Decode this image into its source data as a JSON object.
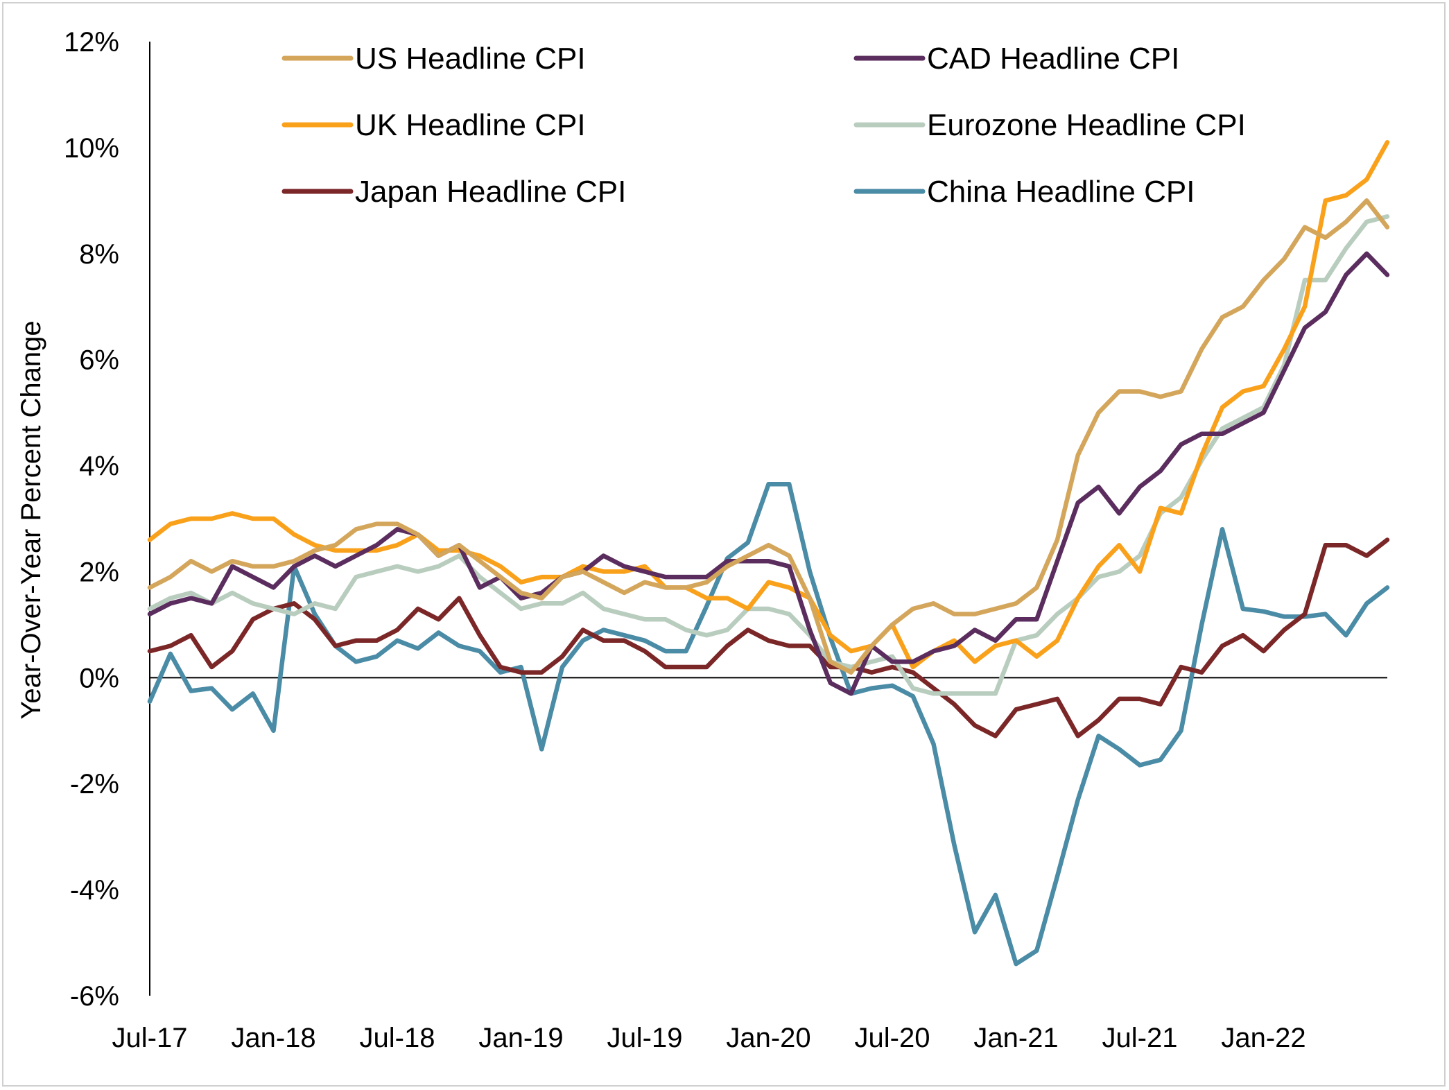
{
  "chart_data": {
    "type": "line",
    "title": "",
    "xlabel": "",
    "ylabel": "Year-Over-Year Percent Change",
    "ylim": [
      -6,
      12
    ],
    "ytick_step": 2,
    "ytick_labels": [
      "-6%",
      "-4%",
      "-2%",
      "0%",
      "2%",
      "4%",
      "6%",
      "8%",
      "10%",
      "12%"
    ],
    "x_start": "Jul-17",
    "x_end": "Jul-22",
    "x_frequency": "monthly",
    "xtick_labels": [
      "Jul-17",
      "Jan-18",
      "Jul-18",
      "Jan-19",
      "Jul-19",
      "Jan-20",
      "Jul-20",
      "Jan-21",
      "Jul-21",
      "Jan-22"
    ],
    "grid": false,
    "legend_placement": "top",
    "series": [
      {
        "name": "US Headline CPI",
        "color": "#D4A65C",
        "values": [
          1.7,
          1.9,
          2.2,
          2.0,
          2.2,
          2.1,
          2.1,
          2.2,
          2.4,
          2.5,
          2.8,
          2.9,
          2.9,
          2.7,
          2.3,
          2.5,
          2.2,
          1.9,
          1.6,
          1.5,
          1.9,
          2.0,
          1.8,
          1.6,
          1.8,
          1.7,
          1.7,
          1.8,
          2.1,
          2.3,
          2.5,
          2.3,
          1.5,
          0.3,
          0.1,
          0.6,
          1.0,
          1.3,
          1.4,
          1.2,
          1.2,
          1.3,
          1.4,
          1.7,
          2.6,
          4.2,
          5.0,
          5.4,
          5.4,
          5.3,
          5.4,
          6.2,
          6.8,
          7.0,
          7.5,
          7.9,
          8.5,
          8.3,
          8.6,
          9.0,
          8.5
        ]
      },
      {
        "name": "CAD Headline CPI",
        "color": "#5A2D5E",
        "values": [
          1.2,
          1.4,
          1.5,
          1.4,
          2.1,
          1.9,
          1.7,
          2.1,
          2.3,
          2.1,
          2.3,
          2.5,
          2.8,
          2.7,
          2.3,
          2.5,
          1.7,
          1.9,
          1.5,
          1.6,
          1.9,
          2.0,
          2.3,
          2.1,
          2.0,
          1.9,
          1.9,
          1.9,
          2.2,
          2.2,
          2.2,
          2.1,
          0.9,
          -0.1,
          -0.3,
          0.6,
          0.3,
          0.3,
          0.5,
          0.6,
          0.9,
          0.7,
          1.1,
          1.1,
          2.2,
          3.3,
          3.6,
          3.1,
          3.6,
          3.9,
          4.4,
          4.6,
          4.6,
          4.8,
          5.0,
          5.8,
          6.6,
          6.9,
          7.6,
          8.0,
          7.6
        ]
      },
      {
        "name": "UK Headline CPI",
        "color": "#F9A11B",
        "values": [
          2.6,
          2.9,
          3.0,
          3.0,
          3.1,
          3.0,
          3.0,
          2.7,
          2.5,
          2.4,
          2.4,
          2.4,
          2.5,
          2.7,
          2.4,
          2.4,
          2.3,
          2.1,
          1.8,
          1.9,
          1.9,
          2.1,
          2.0,
          2.0,
          2.1,
          1.7,
          1.7,
          1.5,
          1.5,
          1.3,
          1.8,
          1.7,
          1.5,
          0.8,
          0.5,
          0.6,
          1.0,
          0.2,
          0.5,
          0.7,
          0.3,
          0.6,
          0.7,
          0.4,
          0.7,
          1.5,
          2.1,
          2.5,
          2.0,
          3.2,
          3.1,
          4.2,
          5.1,
          5.4,
          5.5,
          6.2,
          7.0,
          9.0,
          9.1,
          9.4,
          10.1
        ]
      },
      {
        "name": "Eurozone Headline CPI",
        "color": "#B9CDBF",
        "values": [
          1.3,
          1.5,
          1.6,
          1.4,
          1.6,
          1.4,
          1.3,
          1.2,
          1.4,
          1.3,
          1.9,
          2.0,
          2.1,
          2.0,
          2.1,
          2.3,
          1.9,
          1.6,
          1.3,
          1.4,
          1.4,
          1.6,
          1.3,
          1.2,
          1.1,
          1.1,
          0.9,
          0.8,
          0.9,
          1.3,
          1.3,
          1.2,
          0.8,
          0.3,
          0.2,
          0.3,
          0.4,
          -0.2,
          -0.3,
          -0.3,
          -0.3,
          -0.3,
          0.7,
          0.8,
          1.2,
          1.5,
          1.9,
          2.0,
          2.3,
          3.1,
          3.4,
          4.1,
          4.7,
          4.9,
          5.1,
          5.9,
          7.5,
          7.5,
          8.1,
          8.6,
          8.7
        ]
      },
      {
        "name": "Japan Headline CPI",
        "color": "#7B2627",
        "values": [
          0.5,
          0.6,
          0.8,
          0.2,
          0.5,
          1.1,
          1.3,
          1.4,
          1.1,
          0.6,
          0.7,
          0.7,
          0.9,
          1.3,
          1.1,
          1.5,
          0.8,
          0.2,
          0.1,
          0.1,
          0.4,
          0.9,
          0.7,
          0.7,
          0.5,
          0.2,
          0.2,
          0.2,
          0.6,
          0.9,
          0.7,
          0.6,
          0.6,
          0.2,
          0.2,
          0.1,
          0.2,
          0.1,
          -0.2,
          -0.5,
          -0.9,
          -1.1,
          -0.6,
          -0.5,
          -0.4,
          -1.1,
          -0.8,
          -0.4,
          -0.4,
          -0.5,
          0.2,
          0.1,
          0.6,
          0.8,
          0.5,
          0.9,
          1.2,
          2.5,
          2.5,
          2.3,
          2.6
        ]
      },
      {
        "name": "China Headline CPI",
        "color": "#4A8BA6",
        "values": [
          -0.45,
          0.45,
          -0.25,
          -0.2,
          -0.6,
          -0.3,
          -1.0,
          2.1,
          1.2,
          0.6,
          0.3,
          0.4,
          0.7,
          0.55,
          0.85,
          0.6,
          0.5,
          0.1,
          0.2,
          -1.35,
          0.2,
          0.7,
          0.9,
          0.8,
          0.7,
          0.5,
          0.5,
          1.35,
          2.25,
          2.55,
          3.65,
          3.65,
          2.0,
          0.75,
          -0.3,
          -0.2,
          -0.15,
          -0.35,
          -1.25,
          -3.15,
          -4.8,
          -4.1,
          -5.4,
          -5.15,
          -3.75,
          -2.3,
          -1.1,
          -1.35,
          -1.65,
          -1.55,
          -1.0,
          1.0,
          2.8,
          1.3,
          1.25,
          1.15,
          1.15,
          1.2,
          0.8,
          1.4,
          1.7
        ]
      }
    ]
  }
}
